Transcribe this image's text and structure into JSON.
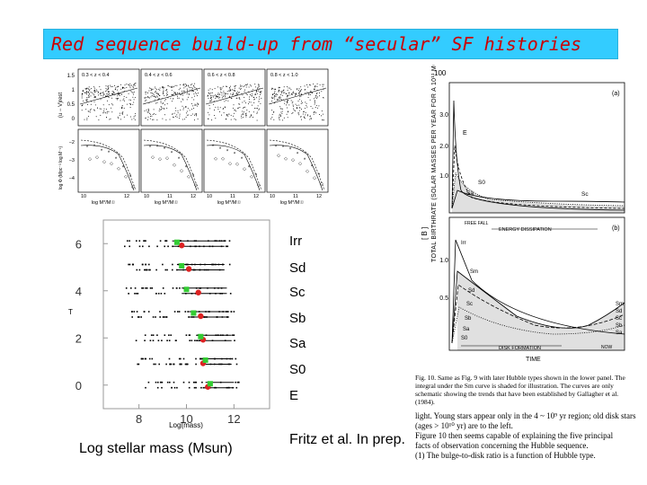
{
  "title": "Red sequence build-up from “secular” SF histories",
  "top_left_panel": {
    "bins": [
      "0.3 < z < 0.4",
      "0.4 < z < 0.6",
      "0.6 < z < 0.8",
      "0.8 < z < 1.0"
    ],
    "top_ylabel": "(u − V)rest",
    "top_yticks": [
      "1.5",
      "1",
      "0.5",
      "0"
    ],
    "bottom_ylabel": "log Φ (Mpc⁻³ log M⁻¹)",
    "bottom_yticks": [
      "−2",
      "−3",
      "−4"
    ],
    "xticks": [
      "10",
      "12",
      "10",
      "11",
      "12",
      "10",
      "11",
      "12",
      "10",
      "11",
      "12"
    ],
    "xlabel": "log M*/M☉"
  },
  "hubble_scatter": {
    "yticks": [
      "6",
      "4",
      "2",
      "0"
    ],
    "xticks": [
      "8",
      "10",
      "12"
    ],
    "xlabel": "Log(mass)",
    "ylabel": "T",
    "type_labels": [
      "Irr",
      "Sd",
      "Sc",
      "Sb",
      "Sa",
      "S0",
      "E"
    ],
    "colors": {
      "green": "#33cc33",
      "red": "#dd2222"
    }
  },
  "chart_data": {
    "type": "scatter",
    "xlabel": "Log(mass)",
    "ylabel": "T",
    "xlim": [
      6.5,
      13.5
    ],
    "ylim": [
      -1,
      7
    ],
    "rows": [
      {
        "t": 6,
        "x_range": [
          7.2,
          11.8
        ],
        "green": 9.6,
        "red": 9.8
      },
      {
        "t": 5,
        "x_range": [
          7.5,
          11.8
        ],
        "green": 9.8,
        "red": 10.1
      },
      {
        "t": 4,
        "x_range": [
          7.4,
          11.9
        ],
        "green": 10.0,
        "red": 10.5
      },
      {
        "t": 3,
        "x_range": [
          7.6,
          12.0
        ],
        "green": 10.3,
        "red": 10.6
      },
      {
        "t": 2,
        "x_range": [
          7.8,
          12.1
        ],
        "green": 10.6,
        "red": 10.7
      },
      {
        "t": 1,
        "x_range": [
          7.9,
          12.1
        ],
        "green": 10.8,
        "red": 10.7
      },
      {
        "t": 0,
        "x_range": [
          8.0,
          12.2
        ],
        "green": 11.0,
        "red": 10.9
      }
    ]
  },
  "bottom_left_label": "Log stellar mass (Msun)",
  "citation": "Fritz et al. In prep.",
  "sandage_figure": {
    "page_number": "100",
    "top_ylabel": "TOTAL BIRTHRATE (SOLAR MASSES PER YEAR FOR A 10¹¹ M☉ GALAXY)",
    "ylabel_bracket": "[ B ]",
    "top_yticks": [
      "3.0",
      "2.0",
      "1.0"
    ],
    "top_tag": "(a)",
    "top_labels": [
      "E",
      "S0",
      "Sa",
      "Sc"
    ],
    "bottom_tag": "(b)",
    "bottom_header": [
      "FREE FALL",
      "ENERGY DISSIPATION"
    ],
    "bottom_yticks": [
      "1.0",
      "0.5"
    ],
    "bottom_labels": [
      "Irr",
      "Sm",
      "Sd",
      "Sc",
      "Sb",
      "Sa",
      "S0"
    ],
    "legend_right": [
      "Sm",
      "Sd",
      "Sc",
      "Sb",
      "Sa"
    ],
    "disk_formation": "DISK FORMATION",
    "now_label": "NOW",
    "xlabel": "TIME",
    "caption_lines": [
      "Fig. 10. Same as Fig. 9 with later Hubble types shown in the lower panel. The",
      "integral under the Sm curve is shaded for illustration. The curves are only",
      "schematic showing the trends that have been established by Gallagher et al.",
      "(1984).",
      "",
      "light. Young stars appear only in the 4 ~ 10⁹ yr region; old disk stars",
      "(ages > 10¹⁰ yr) are to the left.",
      "    Figure 10 then seems capable of explaining the five principal",
      "facts of observation concerning the Hubble sequence.",
      "    (1) The bulge-to-disk ratio is a function of Hubble type."
    ]
  }
}
